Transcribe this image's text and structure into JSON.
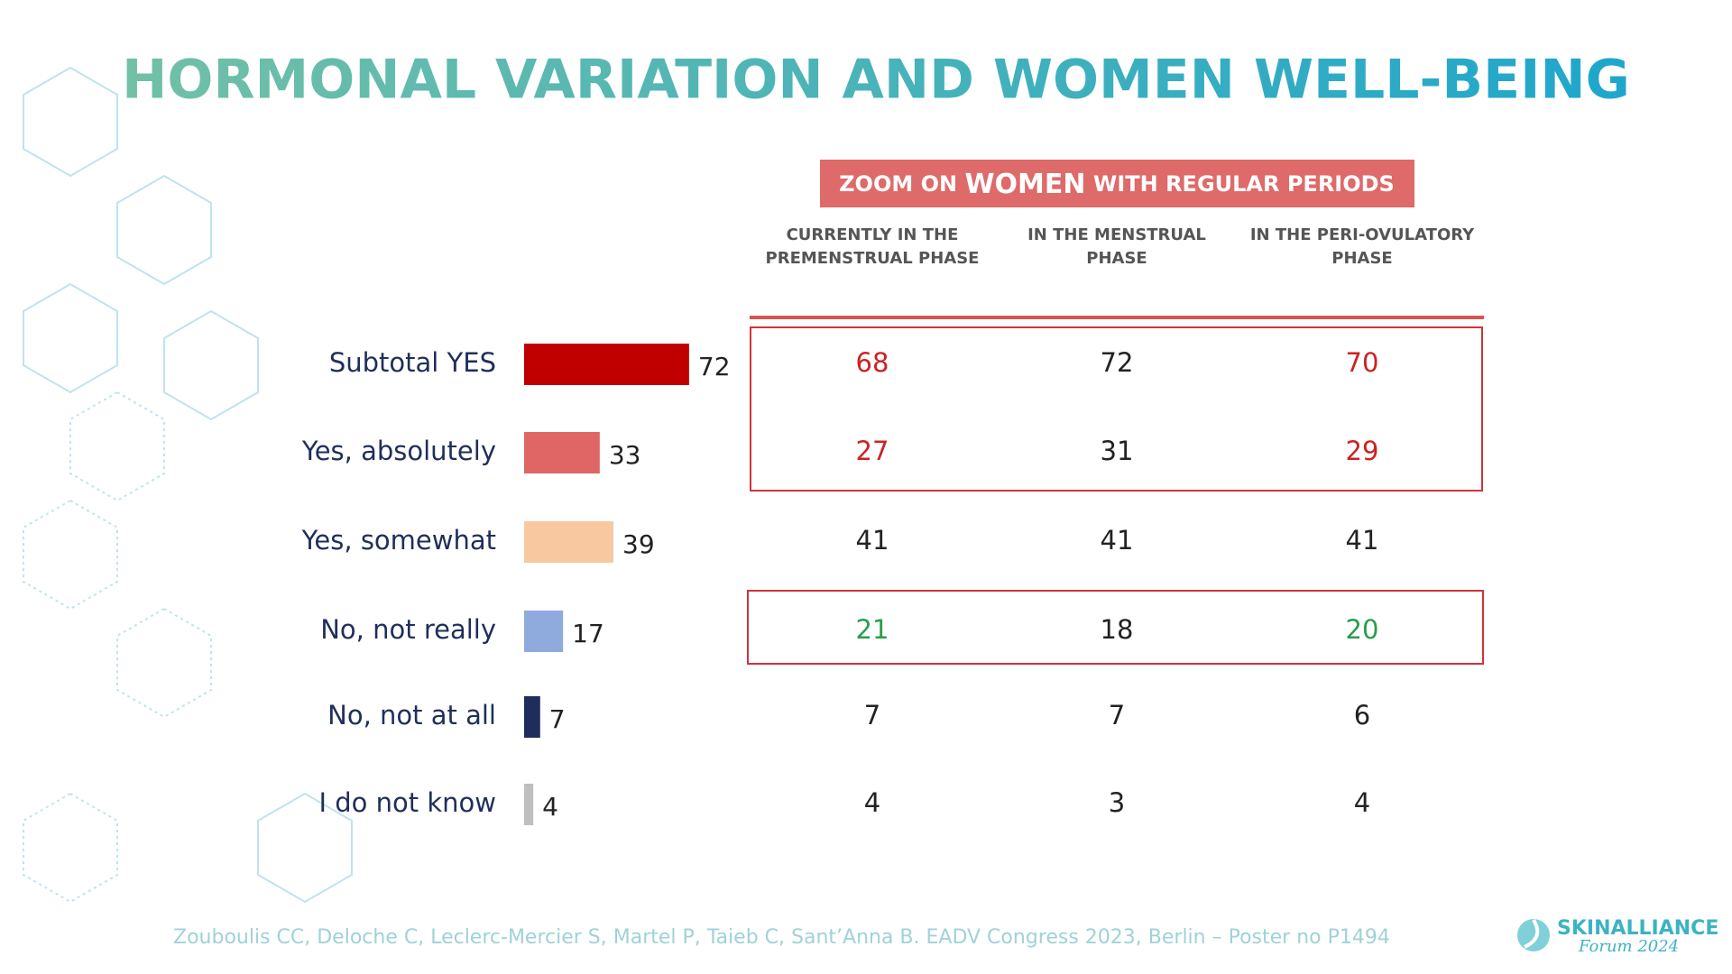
{
  "chart_data": {
    "type": "bar",
    "title": "HORMONAL VARIATION AND WOMEN WELL-BEING",
    "categories": [
      "Subtotal YES",
      "Yes, absolutely",
      "Yes, somewhat",
      "No, not really",
      "No, not at all",
      "I do not know"
    ],
    "values": [
      72,
      33,
      39,
      17,
      7,
      4
    ],
    "colors": [
      "#c00000",
      "#e06666",
      "#f8c9a0",
      "#8faadc",
      "#1f2d5c",
      "#bfbfbf"
    ]
  },
  "table": {
    "header": [
      "ZOOM ON ",
      "WOMEN",
      " WITH REGULAR PERIODS"
    ],
    "columns": [
      "CURRENTLY IN THE PREMENSTRUAL PHASE",
      "IN THE MENSTRUAL PHASE",
      "IN THE PERI-OVULATORY PHASE"
    ],
    "rows": [
      [
        68,
        72,
        70
      ],
      [
        27,
        31,
        29
      ],
      [
        41,
        41,
        41
      ],
      [
        21,
        18,
        20
      ],
      [
        7,
        7,
        6
      ],
      [
        4,
        3,
        4
      ]
    ],
    "cell_colors": [
      [
        "#cc2222",
        "#222222",
        "#cc2222"
      ],
      [
        "#cc2222",
        "#222222",
        "#cc2222"
      ],
      [
        "#222222",
        "#222222",
        "#222222"
      ],
      [
        "#2a9d4a",
        "#222222",
        "#2a9d4a"
      ],
      [
        "#222222",
        "#222222",
        "#222222"
      ],
      [
        "#222222",
        "#222222",
        "#222222"
      ]
    ]
  },
  "footer": "Zouboulis CC, Deloche C, Leclerc-Mercier S, Martel P, Taieb C, Sant’Anna B. EADV Congress 2023, Berlin – Poster no P1494",
  "logo": {
    "name": "SKINALLIANCE",
    "tagline": "Forum 2024"
  }
}
